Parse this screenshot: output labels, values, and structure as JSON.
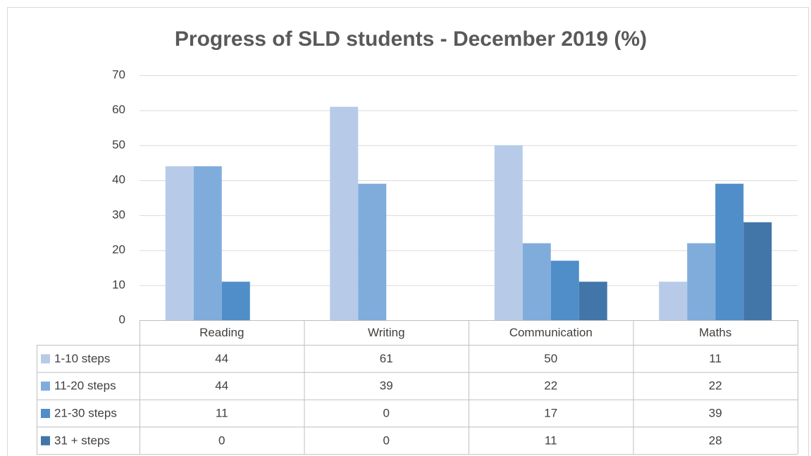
{
  "chart_data": {
    "type": "bar",
    "title": "Progress of SLD students - December 2019 (%)",
    "categories": [
      "Reading",
      "Writing",
      "Communication",
      "Maths"
    ],
    "series": [
      {
        "name": "1-10 steps",
        "color": "#b7cbe8",
        "values": [
          44,
          61,
          50,
          11
        ]
      },
      {
        "name": "11-20 steps",
        "color": "#80acdc",
        "values": [
          44,
          39,
          22,
          22
        ]
      },
      {
        "name": "21-30 steps",
        "color": "#4f8ec9",
        "values": [
          11,
          0,
          17,
          39
        ]
      },
      {
        "name": "31 + steps",
        "color": "#4376a8",
        "values": [
          0,
          0,
          11,
          28
        ]
      }
    ],
    "ylim": [
      0,
      70
    ],
    "yticks": [
      0,
      10,
      20,
      30,
      40,
      50,
      60,
      70
    ],
    "grid": true
  }
}
